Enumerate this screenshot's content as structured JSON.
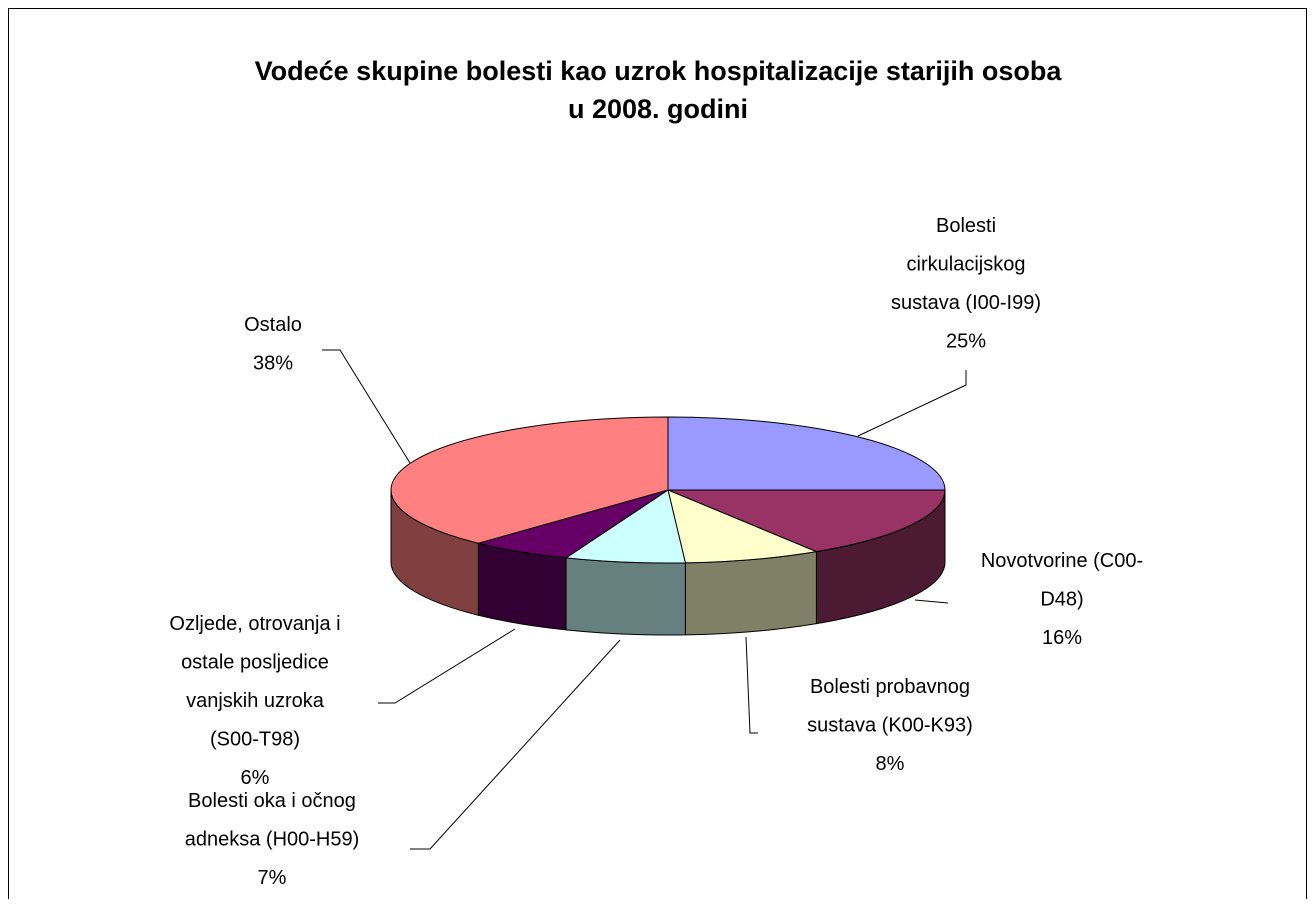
{
  "chart_data": {
    "type": "pie3d",
    "title": "Vodeće skupine bolesti kao uzrok hospitalizacije starijih osoba u 2008. godini",
    "categories": [
      "Bolesti cirkulacijskog sustava (I00-I99)",
      "Novotvorine (C00-D48)",
      "Bolesti probavnog sustava (K00-K93)",
      "Bolesti oka i očnog adneksa (H00-H59)",
      "Ozljede, otrovanja i ostale posljedice vanjskih uzroka (S00-T98)",
      "Ostalo"
    ],
    "values": [
      25,
      16,
      8,
      7,
      6,
      38
    ],
    "value_labels": [
      "25%",
      "16%",
      "8%",
      "7%",
      "6%",
      "38%"
    ],
    "colors": [
      "#9999ff",
      "#993366",
      "#ffffcc",
      "#ccffff",
      "#660066",
      "#ff8080"
    ]
  }
}
